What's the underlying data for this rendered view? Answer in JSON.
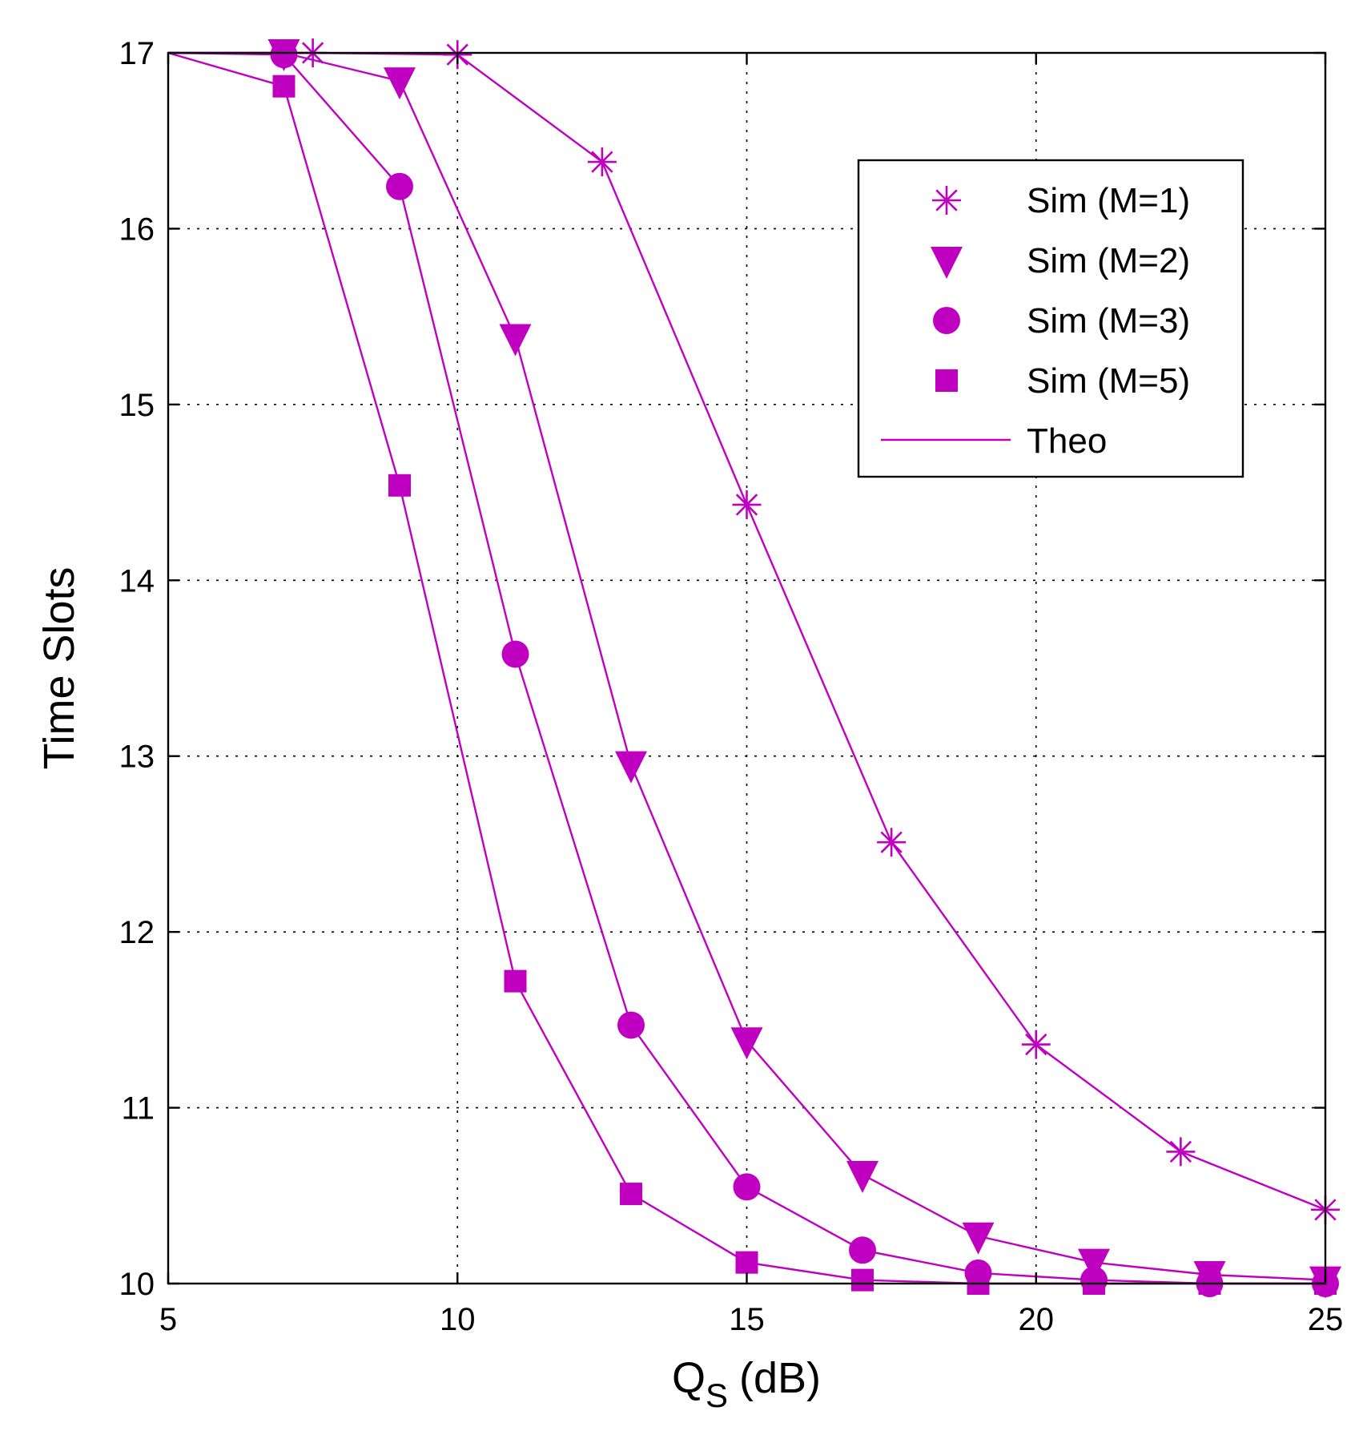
{
  "chart_data": {
    "type": "line",
    "title": "",
    "xlabel_main": "Q",
    "xlabel_sub": "S",
    "xlabel_unit": "(dB)",
    "ylabel": "Time Slots",
    "xlim": [
      5,
      25
    ],
    "ylim": [
      10,
      17
    ],
    "xticks": [
      5,
      10,
      15,
      20,
      25
    ],
    "yticks": [
      10,
      11,
      12,
      13,
      14,
      15,
      16,
      17
    ],
    "grid": true,
    "legend_position": "top-right",
    "color": "#c000c0",
    "series": [
      {
        "name": "Sim (M=1)",
        "marker": "asterisk",
        "x": [
          7.5,
          10,
          12.5,
          15,
          17.5,
          20,
          22.5,
          25
        ],
        "y": [
          17.0,
          16.99,
          16.38,
          14.43,
          12.51,
          11.36,
          10.75,
          10.42
        ]
      },
      {
        "name": "Sim (M=2)",
        "marker": "triangle-down",
        "x": [
          7,
          9,
          11,
          13,
          15,
          17,
          19,
          21,
          23,
          25
        ],
        "y": [
          17.0,
          16.84,
          15.38,
          12.95,
          11.38,
          10.62,
          10.27,
          10.12,
          10.05,
          10.02
        ]
      },
      {
        "name": "Sim (M=3)",
        "marker": "circle",
        "x": [
          7,
          9,
          11,
          13,
          15,
          17,
          19,
          21,
          23,
          25
        ],
        "y": [
          16.99,
          16.24,
          13.58,
          11.47,
          10.55,
          10.19,
          10.06,
          10.02,
          10.0,
          10.0
        ]
      },
      {
        "name": "Sim (M=5)",
        "marker": "square",
        "x": [
          7,
          9,
          11,
          13,
          15,
          17,
          19,
          21,
          23,
          25
        ],
        "y": [
          16.81,
          14.54,
          11.72,
          10.51,
          10.12,
          10.02,
          10.0,
          10.0,
          10.0,
          10.0
        ]
      }
    ],
    "theory": {
      "name": "Theo",
      "curves": [
        {
          "x": [
            5,
            7.5,
            10,
            12.5,
            15,
            17.5,
            20,
            22.5,
            25
          ],
          "y": [
            17.0,
            17.0,
            16.99,
            16.38,
            14.43,
            12.51,
            11.36,
            10.75,
            10.42
          ]
        },
        {
          "x": [
            5,
            7,
            9,
            11,
            13,
            15,
            17,
            19,
            21,
            23,
            25
          ],
          "y": [
            17.0,
            17.0,
            16.84,
            15.38,
            12.95,
            11.38,
            10.62,
            10.27,
            10.12,
            10.05,
            10.02
          ]
        },
        {
          "x": [
            5,
            7,
            9,
            11,
            13,
            15,
            17,
            19,
            21,
            23,
            25
          ],
          "y": [
            17.0,
            16.99,
            16.24,
            13.58,
            11.47,
            10.55,
            10.19,
            10.06,
            10.02,
            10.0,
            10.0
          ]
        },
        {
          "x": [
            5,
            7,
            9,
            11,
            13,
            15,
            17,
            19,
            21,
            23,
            25
          ],
          "y": [
            17.0,
            16.81,
            14.54,
            11.72,
            10.51,
            10.12,
            10.02,
            10.0,
            10.0,
            10.0,
            10.0
          ]
        }
      ]
    }
  }
}
